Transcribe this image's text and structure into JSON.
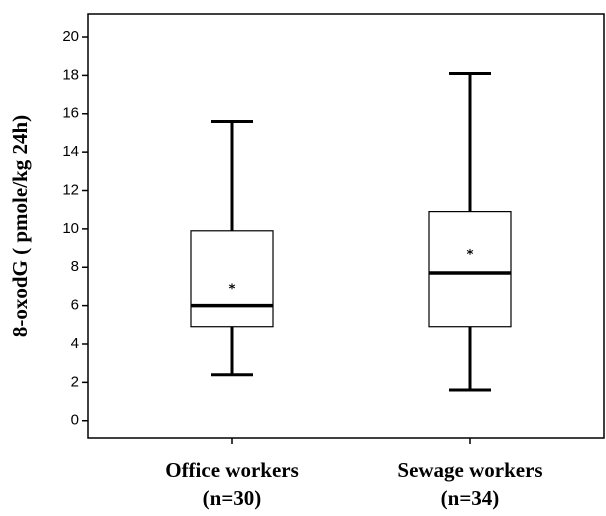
{
  "chart_data": {
    "type": "box",
    "y_label": "8-oxodG ( pmole/kg 24h)",
    "categories": [
      "Office workers",
      "Sewage workers"
    ],
    "sample_sizes": [
      "(n=30)",
      "(n=34)"
    ],
    "boxes": [
      {
        "min": 2.4,
        "q1": 4.9,
        "median": 6.0,
        "q3": 9.9,
        "max": 15.6,
        "mean": 7.0
      },
      {
        "min": 1.6,
        "q1": 4.9,
        "median": 7.7,
        "q3": 10.9,
        "max": 18.1,
        "mean": 8.8
      }
    ],
    "color": "#ffffff",
    "ylim": [
      -0.9,
      21.2
    ],
    "yticks": [
      0,
      2,
      4,
      6,
      8,
      10,
      12,
      14,
      16,
      18,
      20
    ]
  }
}
